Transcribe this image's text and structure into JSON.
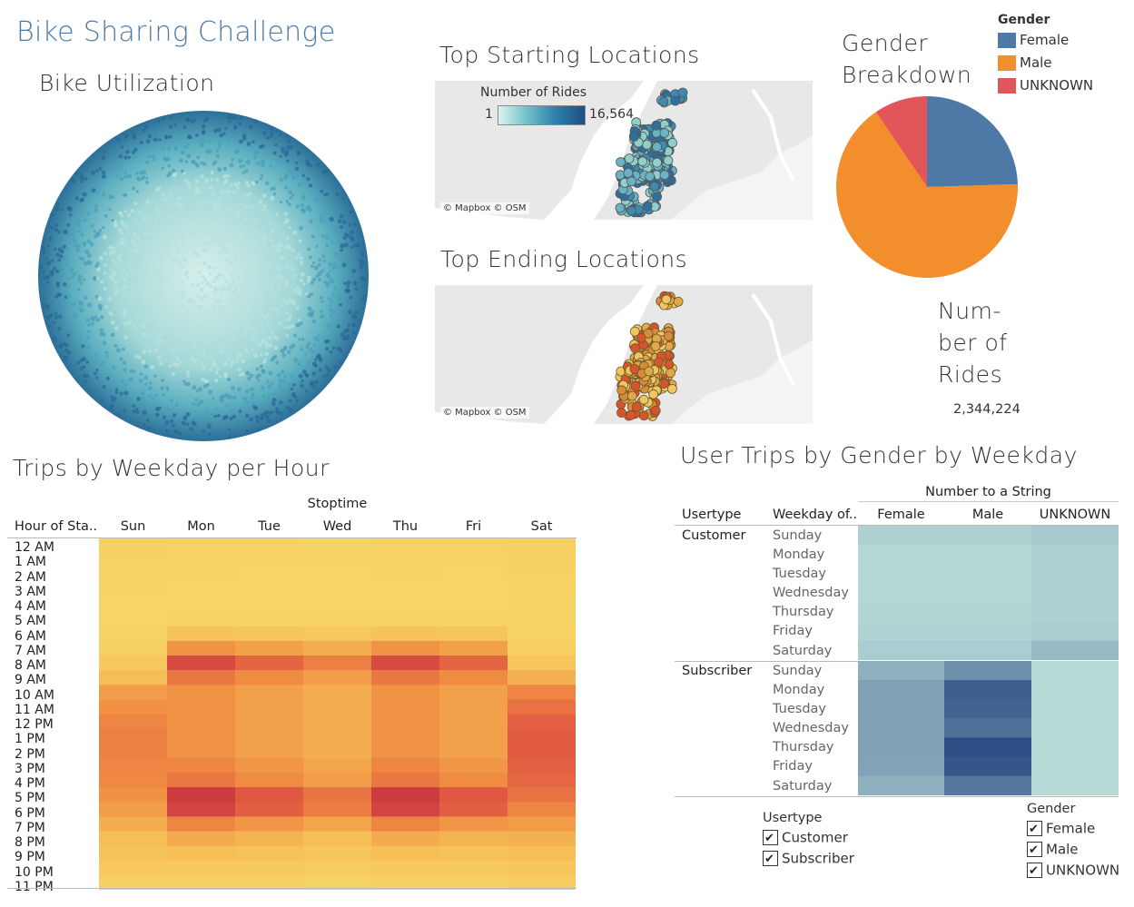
{
  "dashboard_title": "Bike Sharing Challenge",
  "bike_utilization": {
    "title": "Bike Utilization"
  },
  "top_starting": {
    "title": "Top Starting Locations",
    "legend_title": "Number of Rides",
    "legend_min": "1",
    "legend_max": "16,564",
    "credit": "© Mapbox © OSM"
  },
  "top_ending": {
    "title": "Top Ending Locations",
    "credit": "© Mapbox © OSM"
  },
  "gender_breakdown": {
    "title_line1": "Gender",
    "title_line2": "Breakdown",
    "legend_title": "Gender",
    "legend": [
      {
        "label": "Female",
        "color": "#4e79a7"
      },
      {
        "label": "Male",
        "color": "#f28e2b"
      },
      {
        "label": "UNKNOWN",
        "color": "#e15759"
      }
    ]
  },
  "number_of_rides": {
    "title_lines": [
      "Num-",
      "ber of",
      "Rides"
    ],
    "value": "2,344,224"
  },
  "trips_heatmap": {
    "title": "Trips by Weekday per Hour",
    "column_group": "Stoptime",
    "row_header": "Hour of Sta..",
    "columns": [
      "Sun",
      "Mon",
      "Tue",
      "Wed",
      "Thu",
      "Fri",
      "Sat"
    ],
    "hours": [
      "12 AM",
      "1 AM",
      "2 AM",
      "3 AM",
      "4 AM",
      "5 AM",
      "6 AM",
      "7 AM",
      "8 AM",
      "9 AM",
      "10 AM",
      "11 AM",
      "12 PM",
      "1 PM",
      "2 PM",
      "3 PM",
      "4 PM",
      "5 PM",
      "6 PM",
      "7 PM",
      "8 PM",
      "9 PM",
      "10 PM",
      "11 PM"
    ]
  },
  "user_trips": {
    "title": "User Trips by Gender by Weekday",
    "column_group": "Number to a String",
    "header_usertype": "Usertype",
    "header_weekday": "Weekday of..",
    "gender_columns": [
      "Female",
      "Male",
      "UNKNOWN"
    ],
    "groups": [
      {
        "usertype": "Customer",
        "days": [
          "Sunday",
          "Monday",
          "Tuesday",
          "Wednesday",
          "Thursday",
          "Friday",
          "Saturday"
        ]
      },
      {
        "usertype": "Subscriber",
        "days": [
          "Sunday",
          "Monday",
          "Tuesday",
          "Wednesday",
          "Thursday",
          "Friday",
          "Saturday"
        ]
      }
    ]
  },
  "filters": {
    "usertype": {
      "title": "Usertype",
      "options": [
        "Customer",
        "Subscriber"
      ]
    },
    "gender": {
      "title": "Gender",
      "options": [
        "Female",
        "Male",
        "UNKNOWN"
      ]
    }
  }
}
